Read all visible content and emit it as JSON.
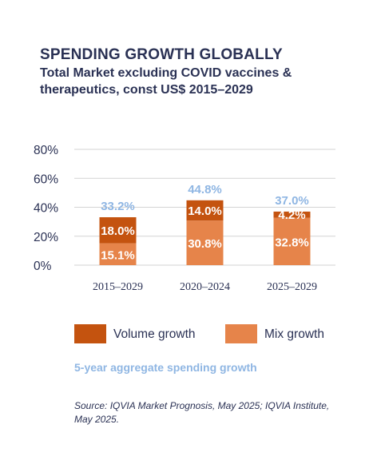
{
  "title": "SPENDING GROWTH GLOBALLY",
  "subtitle": "Total Market excluding COVID vaccines & therapeutics, const US$ 2015–2029",
  "chart_data": {
    "type": "bar",
    "stacked": true,
    "categories": [
      "2015–2029",
      "2020–2024",
      "2025–2029"
    ],
    "series": [
      {
        "name": "Mix growth",
        "values": [
          15.1,
          30.8,
          32.8
        ],
        "labels": [
          "15.1%",
          "30.8%",
          "32.8%"
        ],
        "color": "#e6844a"
      },
      {
        "name": "Volume growth",
        "values": [
          18.0,
          14.0,
          4.2
        ],
        "labels": [
          "18.0%",
          "14.0%",
          "4.2%"
        ],
        "color": "#c4530f"
      }
    ],
    "totals": [
      33.2,
      44.8,
      37.0
    ],
    "total_labels": [
      "33.2%",
      "44.8%",
      "37.0%"
    ],
    "total_label_color": "#8fb6e3",
    "yticks": [
      "0%",
      "20%",
      "40%",
      "60%",
      "80%"
    ],
    "ylim": [
      0,
      80
    ],
    "grid": true
  },
  "legend": {
    "volume_label": "Volume growth",
    "mix_label": "Mix growth",
    "volume_color": "#c4530f",
    "mix_color": "#e6844a"
  },
  "note": "5-year aggregate spending growth",
  "source": "Source: IQVIA Market Prognosis, May 2025; IQVIA Institute, May 2025."
}
